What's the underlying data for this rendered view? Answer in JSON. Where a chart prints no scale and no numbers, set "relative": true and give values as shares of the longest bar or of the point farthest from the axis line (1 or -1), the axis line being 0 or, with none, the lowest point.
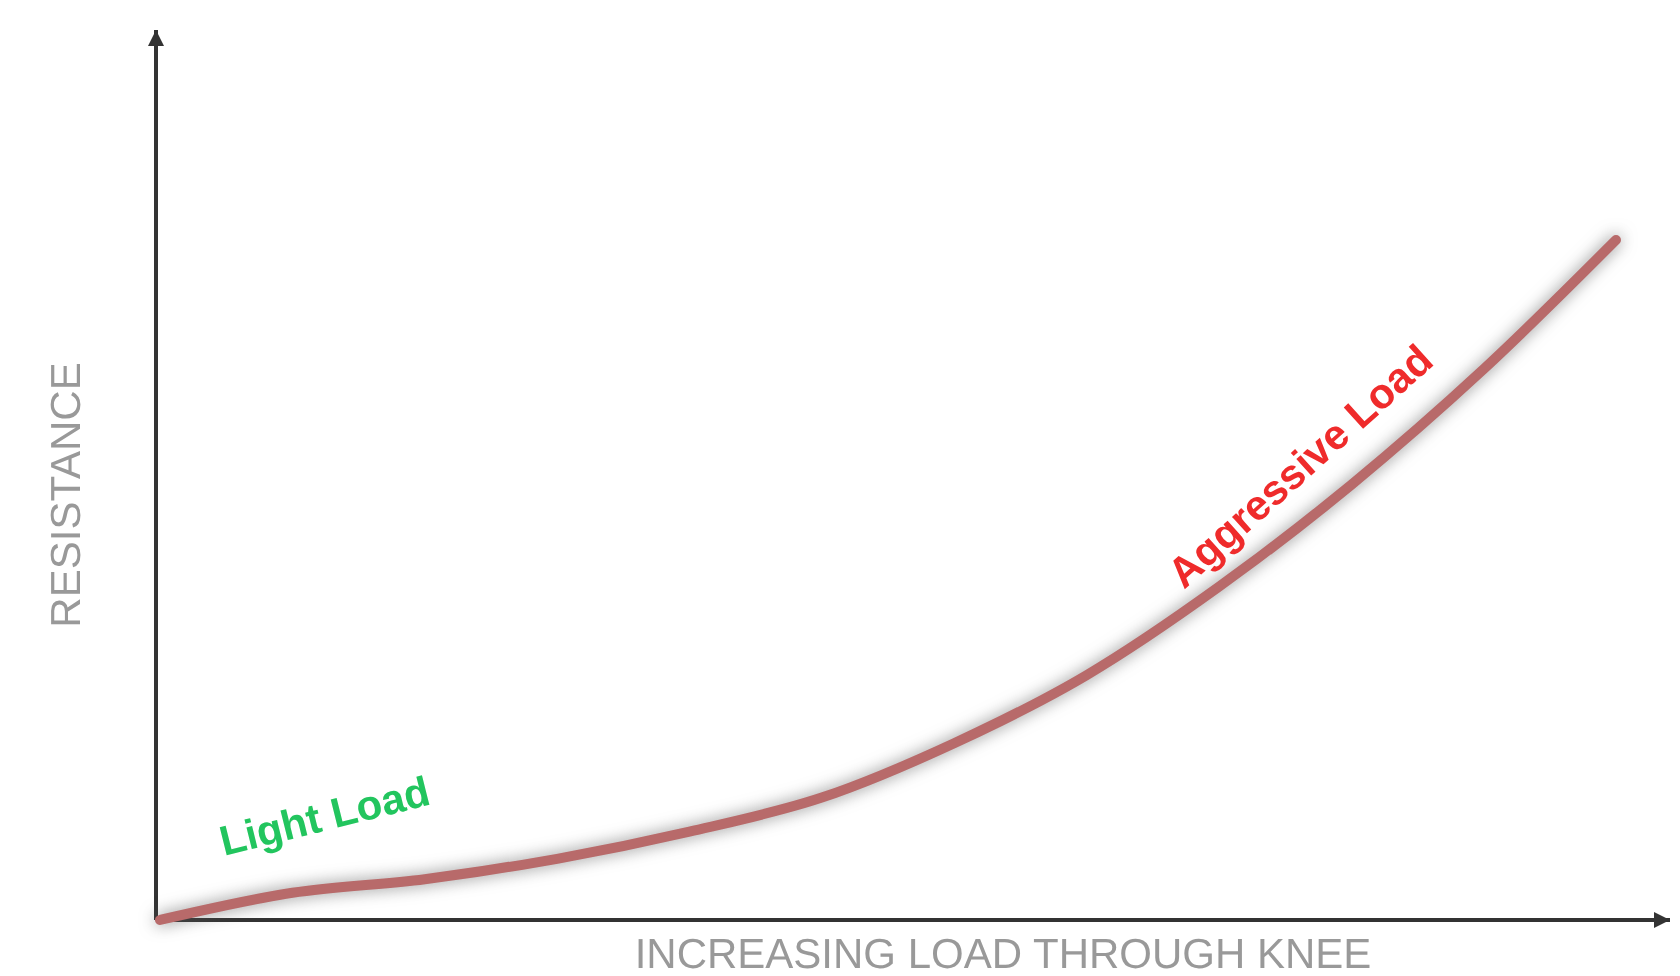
{
  "chart_data": {
    "type": "line",
    "relative": true,
    "xlabel": "INCREASING LOAD THROUGH KNEE",
    "ylabel": "RESISTANCE",
    "categories": [
      null,
      null,
      null,
      null,
      null,
      null,
      null,
      null,
      null,
      null,
      null,
      null
    ],
    "series": [
      {
        "color": "#b86a6a",
        "values": [
          0,
          0.04,
          0.06,
          0.09,
          0.13,
          0.18,
          0.26,
          0.36,
          0.49,
          0.64,
          0.81,
          1
        ]
      }
    ],
    "annotations": [
      "Light Load",
      "Aggressive Load"
    ],
    "line_style": "solid"
  }
}
